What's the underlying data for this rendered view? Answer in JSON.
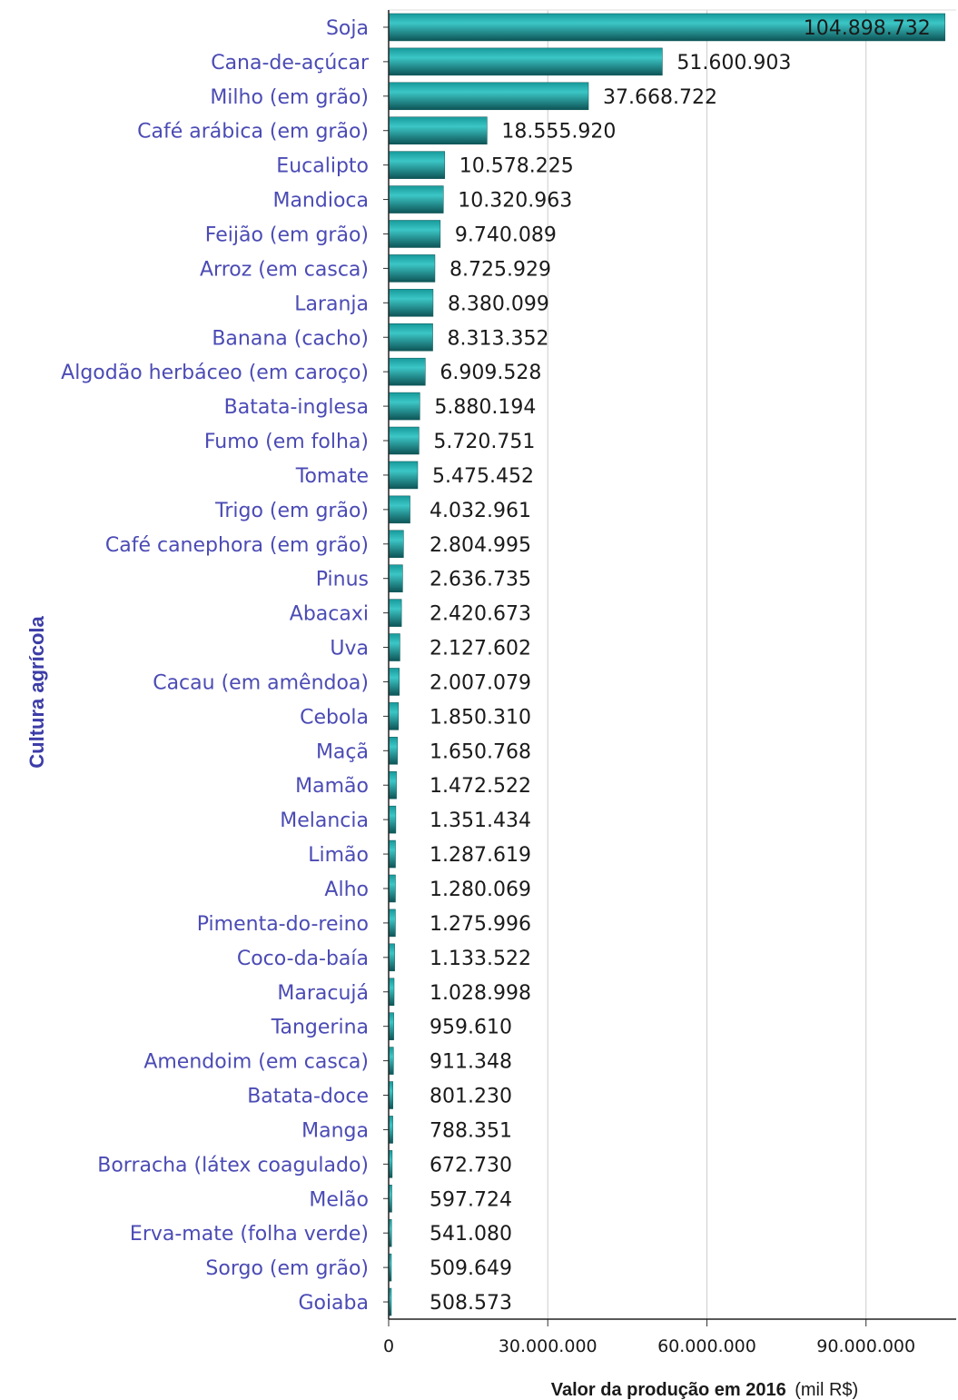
{
  "chart_data": {
    "type": "bar",
    "orientation": "horizontal",
    "categories": [
      "Soja",
      "Cana-de-açúcar",
      "Milho (em grão)",
      "Café arábica (em grão)",
      "Eucalipto",
      "Mandioca",
      "Feijão (em grão)",
      "Arroz (em casca)",
      "Laranja",
      "Banana (cacho)",
      "Algodão herbáceo (em caroço)",
      "Batata-inglesa",
      "Fumo (em folha)",
      "Tomate",
      "Trigo (em grão)",
      "Café canephora (em grão)",
      "Pinus",
      "Abacaxi",
      "Uva",
      "Cacau (em amêndoa)",
      "Cebola",
      "Maçã",
      "Mamão",
      "Melancia",
      "Limão",
      "Alho",
      "Pimenta-do-reino",
      "Coco-da-baía",
      "Maracujá",
      "Tangerina",
      "Amendoim (em casca)",
      "Batata-doce",
      "Manga",
      "Borracha (látex coagulado)",
      "Melão",
      "Erva-mate (folha verde)",
      "Sorgo (em grão)",
      "Goiaba"
    ],
    "values": [
      104898732,
      51600903,
      37668722,
      18555920,
      10578225,
      10320963,
      9740089,
      8725929,
      8380099,
      8313352,
      6909528,
      5880194,
      5720751,
      5475452,
      4032961,
      2804995,
      2636735,
      2420673,
      2127602,
      2007079,
      1850310,
      1650768,
      1472522,
      1351434,
      1287619,
      1280069,
      1275996,
      1133522,
      1028998,
      959610,
      911348,
      801230,
      788351,
      672730,
      597724,
      541080,
      509649,
      508573
    ],
    "value_labels": [
      "104.898.732",
      "51.600.903",
      "37.668.722",
      "18.555.920",
      "10.578.225",
      "10.320.963",
      "9.740.089",
      "8.725.929",
      "8.380.099",
      "8.313.352",
      "6.909.528",
      "5.880.194",
      "5.720.751",
      "5.475.452",
      "4.032.961",
      "2.804.995",
      "2.636.735",
      "2.420.673",
      "2.127.602",
      "2.007.079",
      "1.850.310",
      "1.650.768",
      "1.472.522",
      "1.351.434",
      "1.287.619",
      "1.280.069",
      "1.275.996",
      "1.133.522",
      "1.028.998",
      "959.610",
      "911.348",
      "801.230",
      "788.351",
      "672.730",
      "597.724",
      "541.080",
      "509.649",
      "508.573"
    ],
    "ylabel": "Cultura agrícola",
    "xlabel_bold": "Valor da produção em 2016",
    "xlabel_unit": "(mil R$)",
    "xlim": [
      0,
      107000000
    ],
    "xticks": [
      0,
      30000000,
      60000000,
      90000000
    ],
    "xtick_labels": [
      "0",
      "30.000.000",
      "60.000.000",
      "90.000.000"
    ],
    "grid": true,
    "legend": "none",
    "colors": {
      "bar_dark": "#0d5456",
      "bar_mid": "#17999a",
      "bar_light": "#3cc6c6",
      "category_text": "#4b4bb5",
      "axis_title": "#3c3ca8",
      "gridline": "#cccccc"
    }
  }
}
